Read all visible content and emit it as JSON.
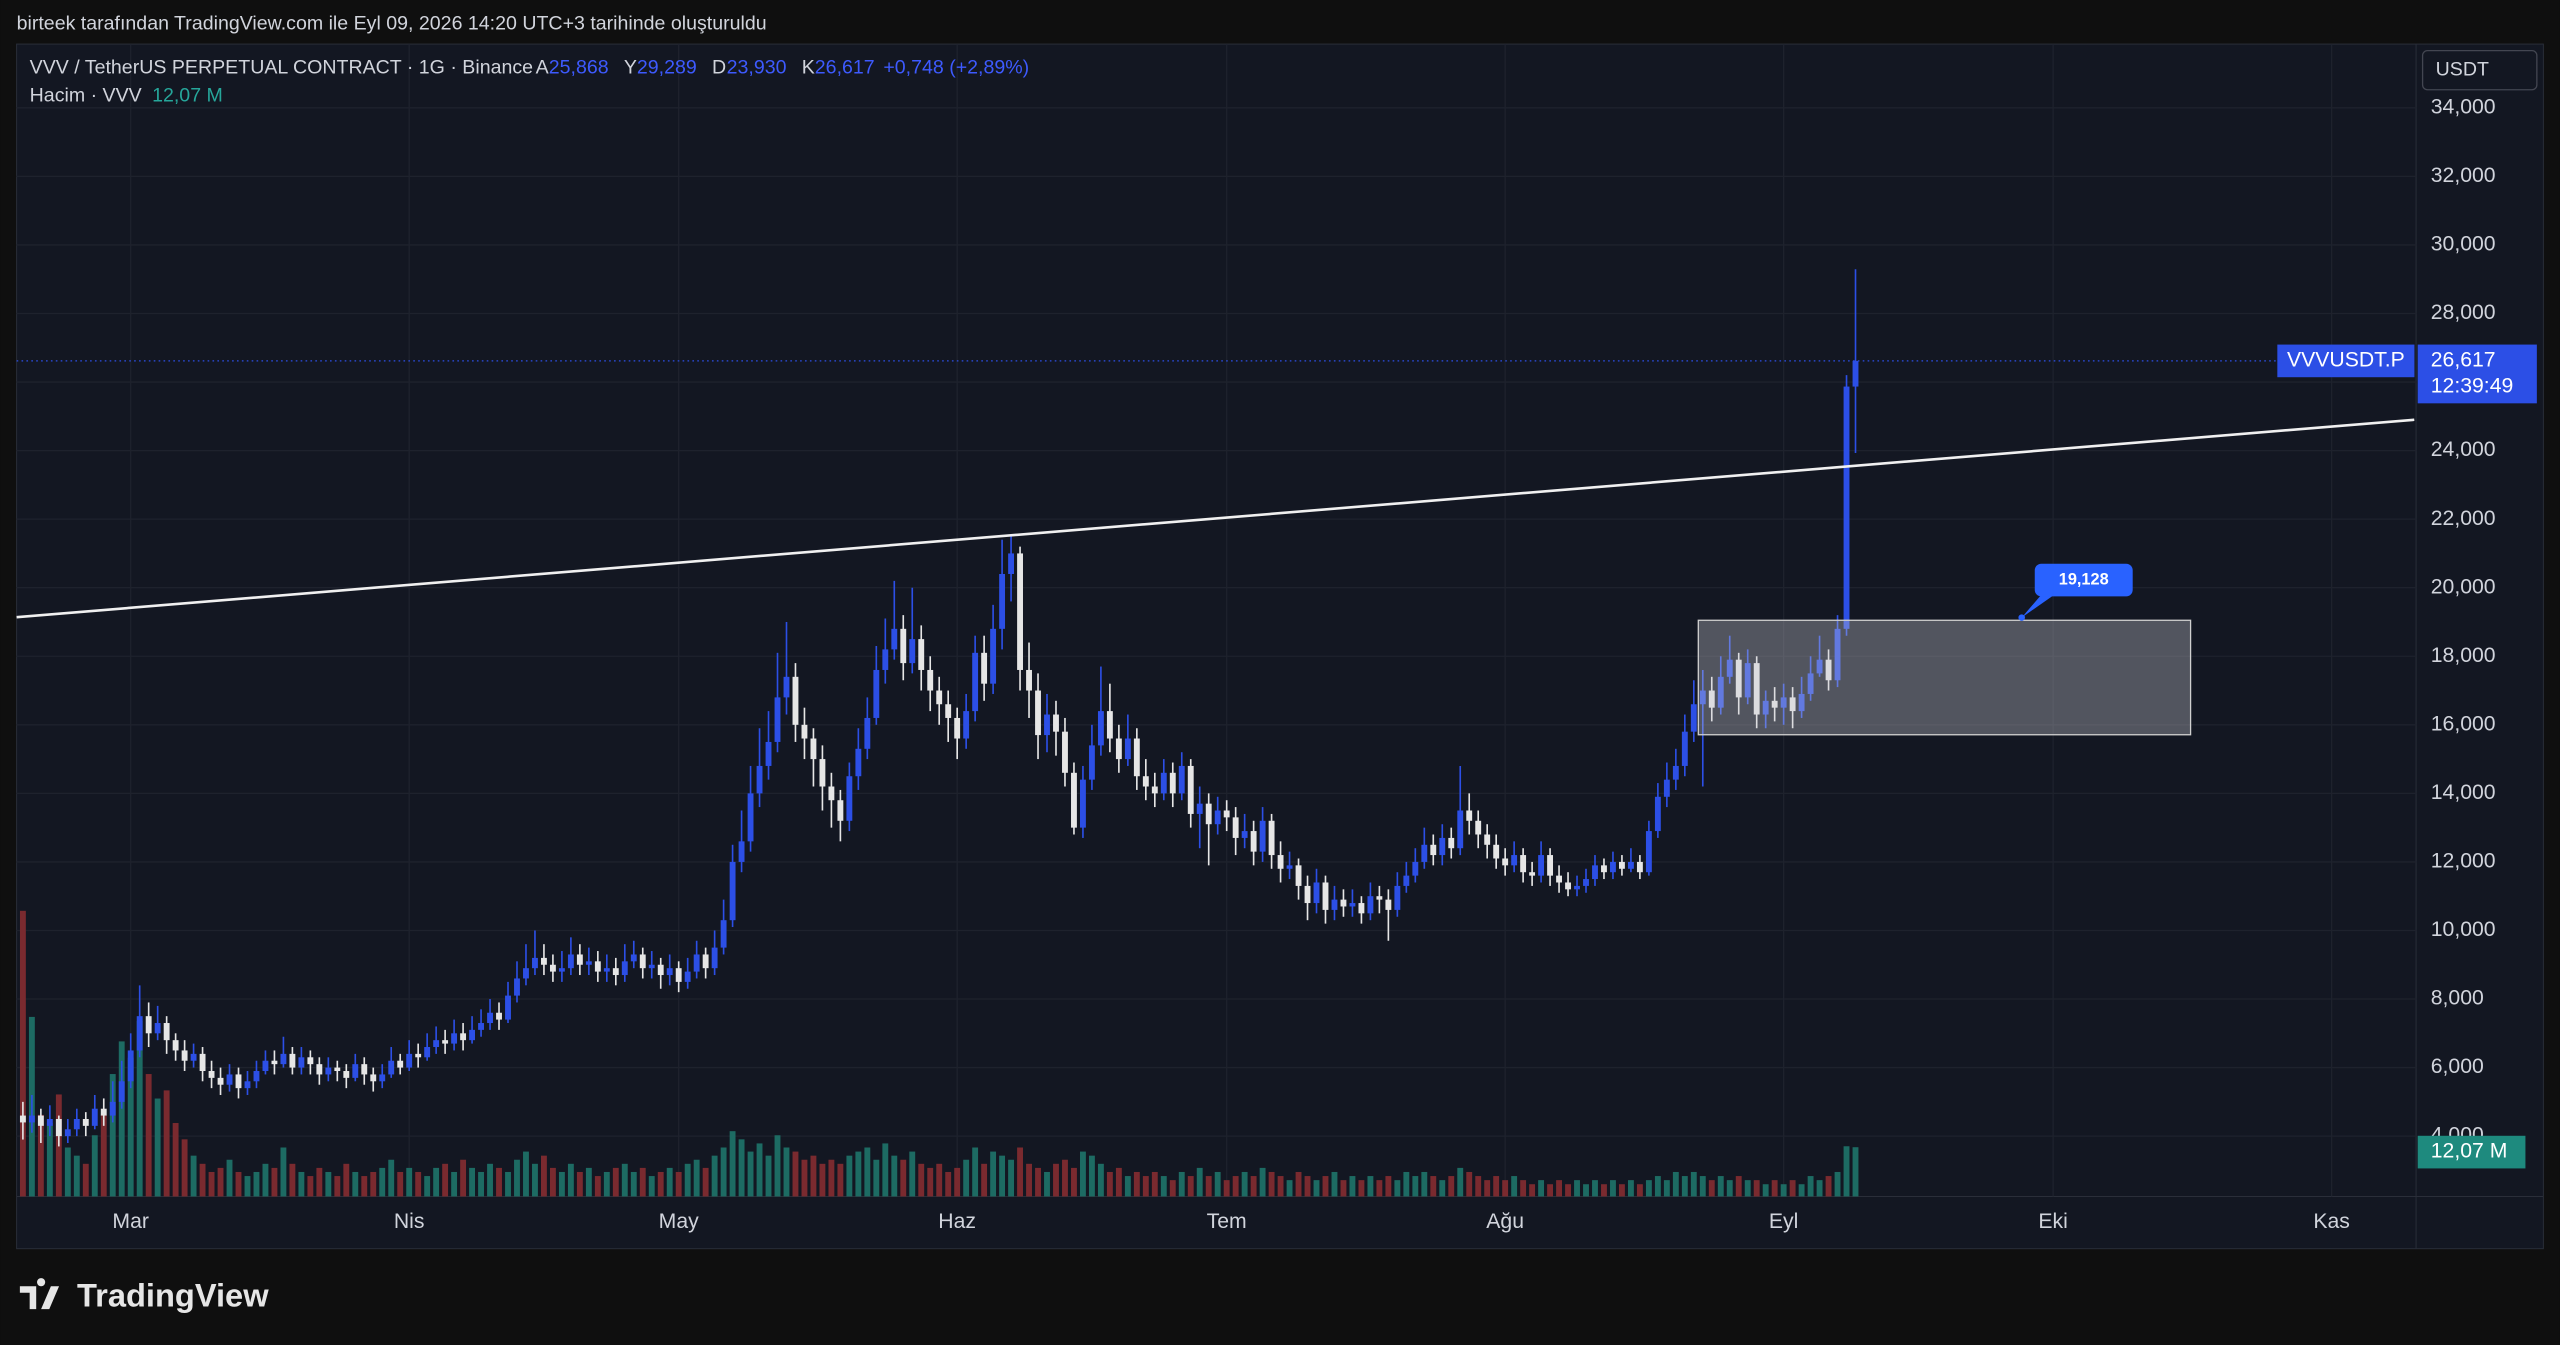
{
  "header": {
    "caption": "birteek tarafından TradingView.com ile Eyl 09, 2026 14:20 UTC+3 tarihinde oluşturuldu",
    "symbol": "VVV / TetherUS PERPETUAL CONTRACT · 1G · Binance",
    "ohlc": [
      {
        "label": "A",
        "value": "25,868"
      },
      {
        "label": "Y",
        "value": "29,289"
      },
      {
        "label": "D",
        "value": "23,930"
      },
      {
        "label": "K",
        "value": "26,617"
      }
    ],
    "change": "+0,748 (+2,89%)",
    "volume_title": "Hacim · VVV",
    "volume_value": "12,07 M"
  },
  "footer": {
    "brand": "TradingView"
  },
  "chart_data": {
    "type": "candlestick",
    "currency": "USDT",
    "up_color": "#2c4fe6",
    "down_color": "#e6e6e6",
    "volume_up_color": "#1d6b63",
    "volume_down_color": "#7a2a2f",
    "xlim": [
      -0.7,
      266.4
    ],
    "ylim": [
      2.24,
      35.86
    ],
    "xticks": [
      {
        "value": 12,
        "label": "Mar"
      },
      {
        "value": 43,
        "label": "Nis"
      },
      {
        "value": 73,
        "label": "May"
      },
      {
        "value": 104,
        "label": "Haz"
      },
      {
        "value": 134,
        "label": "Tem"
      },
      {
        "value": 165,
        "label": "Ağu"
      },
      {
        "value": 196,
        "label": "Eyl"
      },
      {
        "value": 226,
        "label": "Eki"
      },
      {
        "value": 257,
        "label": "Kas"
      }
    ],
    "yticks": [
      {
        "value": 4,
        "label": "4,000"
      },
      {
        "value": 6,
        "label": "6,000"
      },
      {
        "value": 8,
        "label": "8,000"
      },
      {
        "value": 10,
        "label": "10,000"
      },
      {
        "value": 12,
        "label": "12,000"
      },
      {
        "value": 14,
        "label": "14,000"
      },
      {
        "value": 16,
        "label": "16,000"
      },
      {
        "value": 18,
        "label": "18,000"
      },
      {
        "value": 20,
        "label": "20,000"
      },
      {
        "value": 22,
        "label": "22,000"
      },
      {
        "value": 24,
        "label": "24,000"
      },
      {
        "value": 26,
        "label": "26,000"
      },
      {
        "value": 28,
        "label": "28,000"
      },
      {
        "value": 30,
        "label": "30,000"
      },
      {
        "value": 32,
        "label": "32,000"
      },
      {
        "value": 34,
        "label": "34,000"
      }
    ],
    "grid": true,
    "candles": [
      [
        4.6,
        5.0,
        3.9,
        4.4
      ],
      [
        4.4,
        5.2,
        4.1,
        4.6
      ],
      [
        4.6,
        4.8,
        3.8,
        4.3
      ],
      [
        4.3,
        4.9,
        4.0,
        4.5
      ],
      [
        4.5,
        4.6,
        3.7,
        4.0
      ],
      [
        4.0,
        4.5,
        3.8,
        4.2
      ],
      [
        4.2,
        4.8,
        4.0,
        4.5
      ],
      [
        4.5,
        4.7,
        4.0,
        4.3
      ],
      [
        4.3,
        5.2,
        4.2,
        4.8
      ],
      [
        4.8,
        5.1,
        4.3,
        4.6
      ],
      [
        4.6,
        5.6,
        4.4,
        5.0
      ],
      [
        5.0,
        6.2,
        4.8,
        5.6
      ],
      [
        5.6,
        7.0,
        5.4,
        6.5
      ],
      [
        6.5,
        8.4,
        6.3,
        7.5
      ],
      [
        7.5,
        7.9,
        6.6,
        7.0
      ],
      [
        7.0,
        7.8,
        6.8,
        7.3
      ],
      [
        7.3,
        7.5,
        6.4,
        6.8
      ],
      [
        6.8,
        7.0,
        6.2,
        6.5
      ],
      [
        6.5,
        6.8,
        5.9,
        6.2
      ],
      [
        6.2,
        6.7,
        6.0,
        6.4
      ],
      [
        6.4,
        6.6,
        5.6,
        5.9
      ],
      [
        5.9,
        6.2,
        5.4,
        5.7
      ],
      [
        5.7,
        6.0,
        5.2,
        5.5
      ],
      [
        5.5,
        6.1,
        5.3,
        5.8
      ],
      [
        5.8,
        6.0,
        5.1,
        5.4
      ],
      [
        5.4,
        5.9,
        5.2,
        5.6
      ],
      [
        5.6,
        6.2,
        5.4,
        5.9
      ],
      [
        5.9,
        6.5,
        5.8,
        6.2
      ],
      [
        6.2,
        6.5,
        5.8,
        6.1
      ],
      [
        6.1,
        6.9,
        6.0,
        6.4
      ],
      [
        6.4,
        6.6,
        5.8,
        6.0
      ],
      [
        6.0,
        6.6,
        5.8,
        6.3
      ],
      [
        6.3,
        6.5,
        5.8,
        6.1
      ],
      [
        6.1,
        6.3,
        5.5,
        5.8
      ],
      [
        5.8,
        6.3,
        5.6,
        6.0
      ],
      [
        6.0,
        6.2,
        5.6,
        5.9
      ],
      [
        5.9,
        6.1,
        5.4,
        5.7
      ],
      [
        5.7,
        6.4,
        5.6,
        6.1
      ],
      [
        6.1,
        6.3,
        5.5,
        5.8
      ],
      [
        5.8,
        6.0,
        5.3,
        5.6
      ],
      [
        5.6,
        6.1,
        5.4,
        5.8
      ],
      [
        5.8,
        6.6,
        5.7,
        6.2
      ],
      [
        6.2,
        6.4,
        5.8,
        6.0
      ],
      [
        6.0,
        6.8,
        5.9,
        6.4
      ],
      [
        6.4,
        6.7,
        6.0,
        6.3
      ],
      [
        6.3,
        7.0,
        6.2,
        6.6
      ],
      [
        6.6,
        7.2,
        6.4,
        6.8
      ],
      [
        6.8,
        7.1,
        6.4,
        6.7
      ],
      [
        6.7,
        7.4,
        6.5,
        7.0
      ],
      [
        7.0,
        7.3,
        6.5,
        6.8
      ],
      [
        6.8,
        7.5,
        6.7,
        7.1
      ],
      [
        7.1,
        7.7,
        6.9,
        7.3
      ],
      [
        7.3,
        8.0,
        7.1,
        7.6
      ],
      [
        7.6,
        7.9,
        7.1,
        7.4
      ],
      [
        7.4,
        8.5,
        7.3,
        8.1
      ],
      [
        8.1,
        9.1,
        7.9,
        8.6
      ],
      [
        8.6,
        9.6,
        8.4,
        8.9
      ],
      [
        8.9,
        10.0,
        8.7,
        9.2
      ],
      [
        9.2,
        9.6,
        8.7,
        9.0
      ],
      [
        9.0,
        9.3,
        8.5,
        8.8
      ],
      [
        8.8,
        9.4,
        8.5,
        8.9
      ],
      [
        8.9,
        9.8,
        8.7,
        9.3
      ],
      [
        9.3,
        9.6,
        8.7,
        9.0
      ],
      [
        9.0,
        9.5,
        8.7,
        9.1
      ],
      [
        9.1,
        9.4,
        8.5,
        8.8
      ],
      [
        8.8,
        9.3,
        8.5,
        8.9
      ],
      [
        8.9,
        9.2,
        8.4,
        8.7
      ],
      [
        8.7,
        9.6,
        8.5,
        9.1
      ],
      [
        9.1,
        9.7,
        8.9,
        9.3
      ],
      [
        9.3,
        9.5,
        8.6,
        8.9
      ],
      [
        8.9,
        9.4,
        8.6,
        9.0
      ],
      [
        9.0,
        9.2,
        8.3,
        8.7
      ],
      [
        8.7,
        9.3,
        8.4,
        8.9
      ],
      [
        8.9,
        9.1,
        8.2,
        8.5
      ],
      [
        8.5,
        9.2,
        8.3,
        8.8
      ],
      [
        8.8,
        9.7,
        8.6,
        9.3
      ],
      [
        9.3,
        9.5,
        8.6,
        8.9
      ],
      [
        8.9,
        10.0,
        8.7,
        9.5
      ],
      [
        9.5,
        10.9,
        9.3,
        10.3
      ],
      [
        10.3,
        12.5,
        10.1,
        12.0
      ],
      [
        12.0,
        13.5,
        11.7,
        12.6
      ],
      [
        12.6,
        14.8,
        12.3,
        14.0
      ],
      [
        14.0,
        15.9,
        13.6,
        14.8
      ],
      [
        14.8,
        16.4,
        14.4,
        15.5
      ],
      [
        15.5,
        18.1,
        15.2,
        16.8
      ],
      [
        16.8,
        19.0,
        16.3,
        17.4
      ],
      [
        17.4,
        17.8,
        15.5,
        16.0
      ],
      [
        16.0,
        16.5,
        15.0,
        15.6
      ],
      [
        15.6,
        15.9,
        14.2,
        15.0
      ],
      [
        15.0,
        15.4,
        13.5,
        14.2
      ],
      [
        14.2,
        14.6,
        13.0,
        13.8
      ],
      [
        13.8,
        14.1,
        12.6,
        13.2
      ],
      [
        13.2,
        14.9,
        12.9,
        14.5
      ],
      [
        14.5,
        15.9,
        14.1,
        15.3
      ],
      [
        15.3,
        16.8,
        15.0,
        16.2
      ],
      [
        16.2,
        18.3,
        16.0,
        17.6
      ],
      [
        17.6,
        19.1,
        17.2,
        18.2
      ],
      [
        18.2,
        20.2,
        17.9,
        18.8
      ],
      [
        18.8,
        19.2,
        17.3,
        17.8
      ],
      [
        17.8,
        20.0,
        17.5,
        18.5
      ],
      [
        18.5,
        18.9,
        17.0,
        17.6
      ],
      [
        17.6,
        18.0,
        16.4,
        17.0
      ],
      [
        17.0,
        17.4,
        16.0,
        16.6
      ],
      [
        16.6,
        17.0,
        15.5,
        16.2
      ],
      [
        16.2,
        16.5,
        15.0,
        15.6
      ],
      [
        15.6,
        16.9,
        15.3,
        16.4
      ],
      [
        16.4,
        18.6,
        16.1,
        18.1
      ],
      [
        18.1,
        18.6,
        16.7,
        17.2
      ],
      [
        17.2,
        19.5,
        16.9,
        18.8
      ],
      [
        18.8,
        21.4,
        18.2,
        20.4
      ],
      [
        20.4,
        21.5,
        19.6,
        21.0
      ],
      [
        21.0,
        21.2,
        17.0,
        17.6
      ],
      [
        17.6,
        18.4,
        16.2,
        17.0
      ],
      [
        17.0,
        17.5,
        15.0,
        15.7
      ],
      [
        15.7,
        16.9,
        15.2,
        16.3
      ],
      [
        16.3,
        16.7,
        15.1,
        15.8
      ],
      [
        15.8,
        16.2,
        14.2,
        14.6
      ],
      [
        14.6,
        14.9,
        12.8,
        13.0
      ],
      [
        13.0,
        14.8,
        12.7,
        14.4
      ],
      [
        14.4,
        16.0,
        14.1,
        15.4
      ],
      [
        15.4,
        17.7,
        15.1,
        16.4
      ],
      [
        16.4,
        17.2,
        15.2,
        15.6
      ],
      [
        15.6,
        16.0,
        14.6,
        15.0
      ],
      [
        15.0,
        16.3,
        14.8,
        15.6
      ],
      [
        15.6,
        15.9,
        14.1,
        14.5
      ],
      [
        14.5,
        15.0,
        13.8,
        14.2
      ],
      [
        14.2,
        14.6,
        13.6,
        14.0
      ],
      [
        14.0,
        15.0,
        13.8,
        14.6
      ],
      [
        14.6,
        14.9,
        13.6,
        14.0
      ],
      [
        14.0,
        15.2,
        13.8,
        14.8
      ],
      [
        14.8,
        15.0,
        13.0,
        13.4
      ],
      [
        13.4,
        14.2,
        12.4,
        13.7
      ],
      [
        13.7,
        14.0,
        11.9,
        13.1
      ],
      [
        13.1,
        13.9,
        12.8,
        13.5
      ],
      [
        13.5,
        13.8,
        12.9,
        13.3
      ],
      [
        13.3,
        13.6,
        12.2,
        12.7
      ],
      [
        12.7,
        13.4,
        12.4,
        12.9
      ],
      [
        12.9,
        13.2,
        11.9,
        12.3
      ],
      [
        12.3,
        13.6,
        12.0,
        13.2
      ],
      [
        13.2,
        13.4,
        11.8,
        12.2
      ],
      [
        12.2,
        12.6,
        11.4,
        11.8
      ],
      [
        11.8,
        12.3,
        11.5,
        11.9
      ],
      [
        11.9,
        12.1,
        10.9,
        11.3
      ],
      [
        11.3,
        11.6,
        10.3,
        10.8
      ],
      [
        10.8,
        11.8,
        10.5,
        11.4
      ],
      [
        11.4,
        11.6,
        10.2,
        10.6
      ],
      [
        10.6,
        11.3,
        10.3,
        10.9
      ],
      [
        10.9,
        11.2,
        10.4,
        10.7
      ],
      [
        10.7,
        11.2,
        10.4,
        10.8
      ],
      [
        10.8,
        11.0,
        10.2,
        10.5
      ],
      [
        10.5,
        11.4,
        10.3,
        11.0
      ],
      [
        11.0,
        11.3,
        10.5,
        10.9
      ],
      [
        10.9,
        11.2,
        9.7,
        10.6
      ],
      [
        10.6,
        11.7,
        10.4,
        11.3
      ],
      [
        11.3,
        12.0,
        11.1,
        11.6
      ],
      [
        11.6,
        12.4,
        11.4,
        12.0
      ],
      [
        12.0,
        13.0,
        11.8,
        12.5
      ],
      [
        12.5,
        12.8,
        11.9,
        12.2
      ],
      [
        12.2,
        13.1,
        11.9,
        12.7
      ],
      [
        12.7,
        13.0,
        12.1,
        12.4
      ],
      [
        12.4,
        14.8,
        12.2,
        13.5
      ],
      [
        13.5,
        14.0,
        12.8,
        13.2
      ],
      [
        13.2,
        13.5,
        12.4,
        12.8
      ],
      [
        12.8,
        13.1,
        12.1,
        12.5
      ],
      [
        12.5,
        12.8,
        11.8,
        12.1
      ],
      [
        12.1,
        12.4,
        11.6,
        11.9
      ],
      [
        11.9,
        12.6,
        11.7,
        12.2
      ],
      [
        12.2,
        12.4,
        11.4,
        11.7
      ],
      [
        11.7,
        12.0,
        11.3,
        11.6
      ],
      [
        11.6,
        12.6,
        11.4,
        12.2
      ],
      [
        12.2,
        12.4,
        11.3,
        11.6
      ],
      [
        11.6,
        11.9,
        11.1,
        11.4
      ],
      [
        11.4,
        11.7,
        11.0,
        11.2
      ],
      [
        11.2,
        11.6,
        11.0,
        11.3
      ],
      [
        11.3,
        11.8,
        11.1,
        11.5
      ],
      [
        11.5,
        12.2,
        11.3,
        11.9
      ],
      [
        11.9,
        12.1,
        11.5,
        11.7
      ],
      [
        11.7,
        12.3,
        11.5,
        12.0
      ],
      [
        12.0,
        12.2,
        11.6,
        11.8
      ],
      [
        11.8,
        12.4,
        11.7,
        12.0
      ],
      [
        12.0,
        12.2,
        11.5,
        11.7
      ],
      [
        11.7,
        13.2,
        11.6,
        12.9
      ],
      [
        12.9,
        14.3,
        12.7,
        13.9
      ],
      [
        13.9,
        14.9,
        13.6,
        14.4
      ],
      [
        14.4,
        15.3,
        14.1,
        14.8
      ],
      [
        14.8,
        16.3,
        14.5,
        15.8
      ],
      [
        15.8,
        17.3,
        15.5,
        16.6
      ],
      [
        16.6,
        17.6,
        14.2,
        17.0
      ],
      [
        17.0,
        17.4,
        16.1,
        16.5
      ],
      [
        16.5,
        18.0,
        16.3,
        17.4
      ],
      [
        17.4,
        18.6,
        17.2,
        17.9
      ],
      [
        17.9,
        18.1,
        16.3,
        16.8
      ],
      [
        16.8,
        18.2,
        16.6,
        17.8
      ],
      [
        17.8,
        18.0,
        15.9,
        16.3
      ],
      [
        16.3,
        17.0,
        15.9,
        16.7
      ],
      [
        16.7,
        17.1,
        16.1,
        16.5
      ],
      [
        16.5,
        17.2,
        16.0,
        16.8
      ],
      [
        16.8,
        17.1,
        15.9,
        16.4
      ],
      [
        16.4,
        17.4,
        16.2,
        16.9
      ],
      [
        16.9,
        18.0,
        16.7,
        17.5
      ],
      [
        17.5,
        18.6,
        17.4,
        17.9
      ],
      [
        17.9,
        18.2,
        17.0,
        17.3
      ],
      [
        17.3,
        19.2,
        17.1,
        18.8
      ],
      [
        18.8,
        26.2,
        18.6,
        25.868
      ],
      [
        25.868,
        29.289,
        23.93,
        26.617
      ]
    ],
    "volume": [
      70,
      44,
      20,
      18,
      25,
      12,
      10,
      8,
      15,
      20,
      30,
      38,
      34,
      43,
      30,
      24,
      26,
      18,
      14,
      10,
      8,
      6,
      7,
      9,
      6,
      5,
      6,
      8,
      7,
      12,
      8,
      6,
      5,
      7,
      6,
      5,
      8,
      6,
      5,
      6,
      7,
      9,
      6,
      7,
      6,
      5,
      7,
      8,
      6,
      9,
      7,
      6,
      8,
      7,
      6,
      9,
      11,
      8,
      10,
      7,
      6,
      8,
      6,
      7,
      5,
      6,
      7,
      8,
      6,
      7,
      5,
      6,
      7,
      6,
      8,
      9,
      7,
      10,
      12,
      16,
      14,
      11,
      13,
      10,
      15,
      12,
      11,
      9,
      10,
      8,
      9,
      8,
      10,
      11,
      12,
      9,
      13,
      10,
      9,
      11,
      8,
      7,
      8,
      6,
      7,
      9,
      12,
      8,
      11,
      10,
      9,
      12,
      8,
      7,
      6,
      8,
      9,
      7,
      11,
      10,
      8,
      6,
      7,
      5,
      6,
      5,
      6,
      5,
      4,
      6,
      5,
      7,
      5,
      6,
      4,
      5,
      6,
      5,
      7,
      6,
      5,
      4,
      6,
      5,
      4,
      5,
      6,
      4,
      5,
      4,
      5,
      4,
      5,
      4,
      6,
      5,
      6,
      5,
      4,
      5,
      7,
      6,
      5,
      4,
      5,
      4,
      5,
      4,
      3,
      4,
      3,
      4,
      3,
      4,
      3,
      4,
      3,
      4,
      3,
      4,
      3,
      4,
      5,
      4,
      6,
      5,
      6,
      5,
      4,
      5,
      4,
      5,
      4,
      4,
      3,
      4,
      3,
      4,
      3,
      5,
      4,
      5,
      6,
      12.3,
      12.07
    ],
    "last_price": {
      "symbol": "VVVUSDT.P",
      "value": 26.617,
      "label": "26,617",
      "countdown": "12:39:49"
    },
    "trendline": {
      "x": [
        -0.7,
        266.2
      ],
      "y": [
        19.14,
        24.9
      ]
    },
    "zone": {
      "x": [
        186.5,
        241.3
      ],
      "y": [
        15.71,
        19.05
      ],
      "label": "19,128",
      "anchor_x": 222.5,
      "anchor_value": 19.128
    }
  }
}
